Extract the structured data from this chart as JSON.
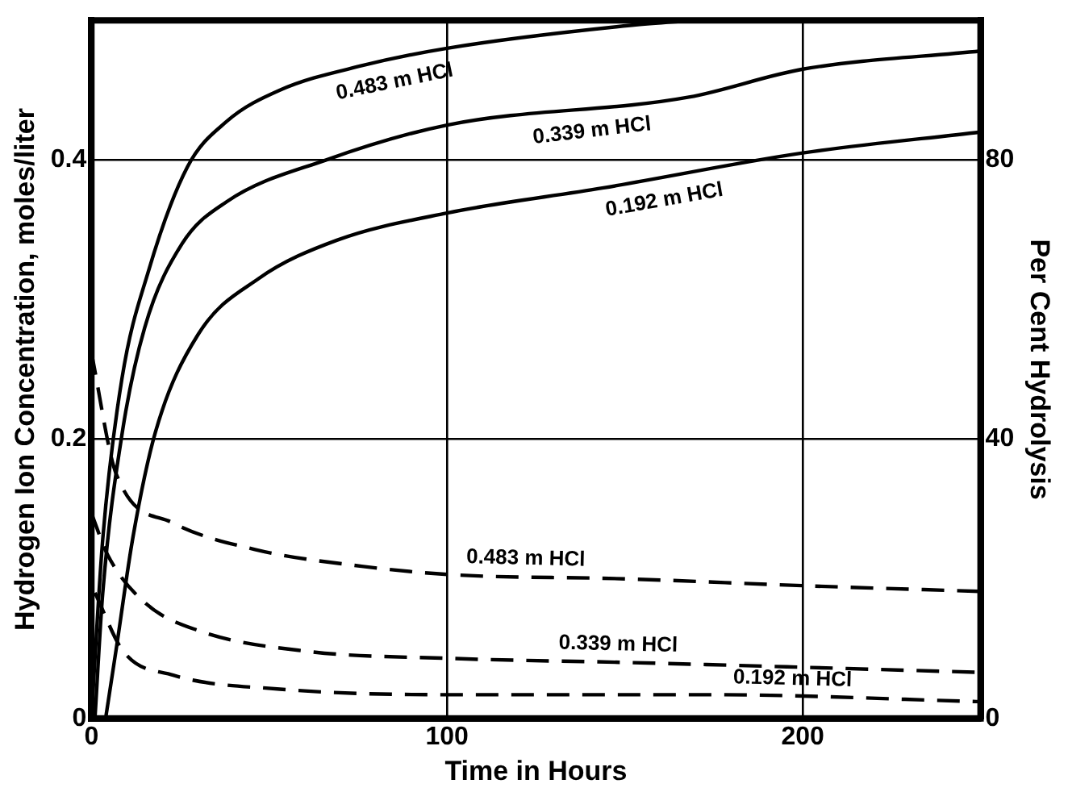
{
  "chart_data": {
    "type": "line",
    "xlabel": "Time in Hours",
    "ylabel": "Hydrogen Ion Concentration, moles/liter",
    "y2label": "Per Cent Hydrolysis",
    "xlim": [
      0,
      250
    ],
    "xticks": [
      0,
      100,
      200
    ],
    "ylim": [
      0,
      0.5
    ],
    "yticks": [
      0,
      0.2,
      0.4
    ],
    "y2lim": [
      0,
      100
    ],
    "y2ticks": [
      0,
      40,
      80
    ],
    "grid": true,
    "marker": "none",
    "series": [
      {
        "name": "0.483 m HCl",
        "color": "#000000",
        "axis": "y2",
        "line_style": "solid",
        "x": [
          0,
          3.2,
          8.6,
          16,
          27,
          38,
          53,
          76,
          100,
          152,
          170
        ],
        "values": [
          0,
          25.7,
          48.7,
          64,
          79,
          85.5,
          90,
          93.5,
          96,
          99.3,
          100
        ]
      },
      {
        "name": "0.339 m HCl",
        "color": "#000000",
        "axis": "y2",
        "line_style": "solid",
        "x": [
          1,
          3.2,
          8.7,
          15,
          25.5,
          38,
          66,
          100,
          168,
          200,
          250
        ],
        "values": [
          0,
          18,
          41,
          56,
          68,
          74,
          80,
          85,
          89,
          93,
          95.6
        ]
      },
      {
        "name": "0.192 m HCl",
        "color": "#000000",
        "axis": "y2",
        "line_style": "solid",
        "x": [
          4,
          7,
          11.7,
          18,
          30,
          47,
          69,
          100,
          144,
          200,
          250
        ],
        "values": [
          0,
          10,
          26,
          41,
          55,
          63,
          68.5,
          72.4,
          76,
          81,
          84
        ]
      },
      {
        "name": "0.483 m HCl",
        "color": "#000000",
        "axis": "y",
        "line_style": "dashed",
        "x": [
          0,
          7,
          23,
          46,
          76,
          101,
          150,
          201,
          250
        ],
        "values": [
          0.262,
          0.175,
          0.14,
          0.121,
          0.109,
          0.103,
          0.1,
          0.095,
          0.091
        ]
      },
      {
        "name": "0.339 m HCl",
        "color": "#000000",
        "axis": "y",
        "line_style": "dashed",
        "x": [
          0,
          4.6,
          15,
          30,
          61,
          101,
          152,
          250
        ],
        "values": [
          0.147,
          0.117,
          0.083,
          0.063,
          0.048,
          0.043,
          0.04,
          0.033
        ]
      },
      {
        "name": "0.192 m HCl",
        "color": "#000000",
        "axis": "y",
        "line_style": "dashed",
        "x": [
          1,
          9,
          23,
          53,
          101,
          175,
          250
        ],
        "values": [
          0.09,
          0.048,
          0.031,
          0.021,
          0.017,
          0.017,
          0.012
        ]
      }
    ]
  }
}
